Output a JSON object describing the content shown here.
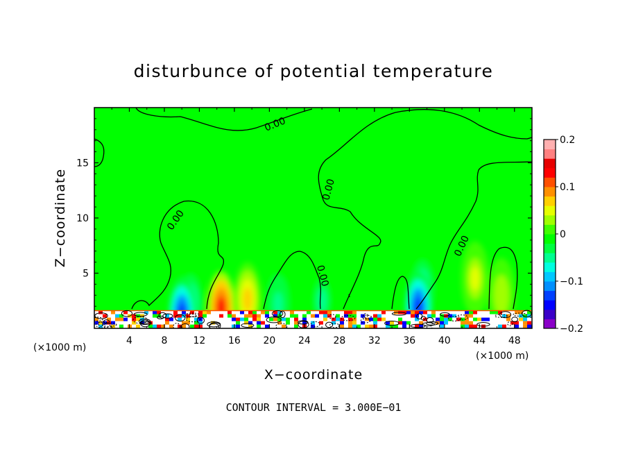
{
  "chart_data": {
    "type": "heatmap",
    "title": "disturbunce of potential temperature",
    "xlabel": "X−coordinate",
    "ylabel": "Z−coordinate",
    "x_unit": "(×1000 m)",
    "z_unit": "(×1000 m)",
    "xlim": [
      0,
      50
    ],
    "ylim": [
      0,
      20
    ],
    "x_ticks": [
      4,
      8,
      12,
      16,
      20,
      24,
      28,
      32,
      36,
      40,
      44,
      48
    ],
    "y_ticks": [
      5,
      10,
      15
    ],
    "contour_interval_note": "CONTOUR INTERVAL = 3.000E−01",
    "contour_label": "0.00",
    "colorbar": {
      "range": [
        -0.2,
        0.2
      ],
      "tick_values": [
        0.2,
        0.1,
        0,
        -0.1,
        -0.2
      ],
      "tick_labels": [
        "0.2",
        "0.1",
        "0",
        "−0.1",
        "−0.2"
      ],
      "colors": [
        "#8a00c8",
        "#3a00c8",
        "#0000ff",
        "#0040ff",
        "#0090ff",
        "#00c8ff",
        "#00ffe0",
        "#00ff90",
        "#00ff40",
        "#00ff00",
        "#40ff00",
        "#a0ff00",
        "#e6ff00",
        "#ffd000",
        "#ff9000",
        "#ff5000",
        "#ff0000",
        "#e60000",
        "#ff8080",
        "#ffb0b0"
      ]
    },
    "background_value": 0,
    "features": [
      {
        "x": 14.5,
        "z": 1.8,
        "value": 0.13
      },
      {
        "x": 17.5,
        "z": 2.6,
        "value": 0.06
      },
      {
        "x": 11.0,
        "z": 2.2,
        "value": -0.07
      },
      {
        "x": 10.0,
        "z": 1.2,
        "value": -0.14
      },
      {
        "x": 21.0,
        "z": 2.2,
        "value": -0.05
      },
      {
        "x": 37.5,
        "z": 3.5,
        "value": -0.06
      },
      {
        "x": 37.0,
        "z": 1.8,
        "value": -0.14
      },
      {
        "x": 43.5,
        "z": 4.5,
        "value": 0.04
      },
      {
        "x": 46.5,
        "z": 3.0,
        "value": 0.03
      },
      {
        "x": 26.0,
        "z": 2.5,
        "value": -0.04
      }
    ]
  }
}
